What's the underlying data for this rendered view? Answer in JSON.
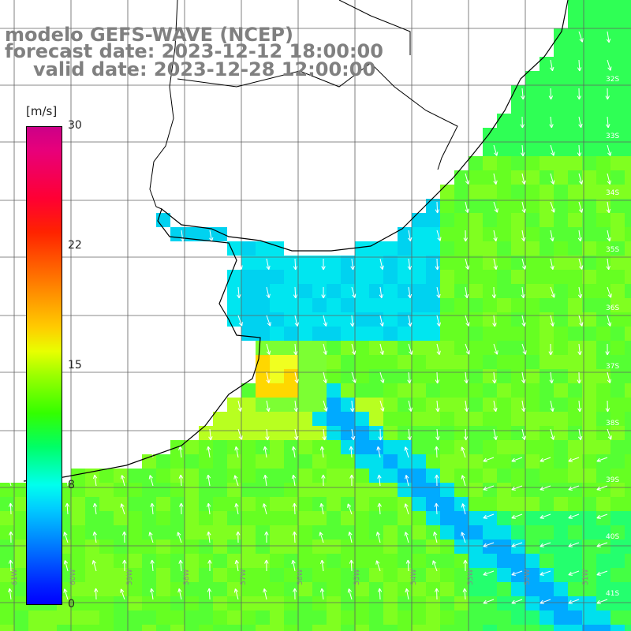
{
  "title": {
    "line1": "modelo GEFS-WAVE (NCEP)",
    "line2": "forecast date: 2023-12-12 18:00:00",
    "line3": "valid date: 2023-12-28 12:00:00"
  },
  "colorbar": {
    "unit": "[m/s]",
    "ticks": [
      "30",
      "22",
      "15",
      "8",
      "0"
    ],
    "colors": [
      "#cc0088",
      "#ff0033",
      "#ff7700",
      "#ffcc00",
      "#33ff00",
      "#00ffee",
      "#0077ff",
      "#0000ff"
    ]
  },
  "axes": {
    "lon_labels": [
      "61W",
      "60W",
      "59W",
      "58W",
      "57W",
      "56W",
      "55W",
      "54W",
      "53W",
      "52W",
      "51W"
    ],
    "lat_labels": [
      "32S",
      "33S",
      "34S",
      "35S",
      "36S",
      "37S",
      "38S",
      "39S",
      "40S",
      "41S"
    ]
  }
}
